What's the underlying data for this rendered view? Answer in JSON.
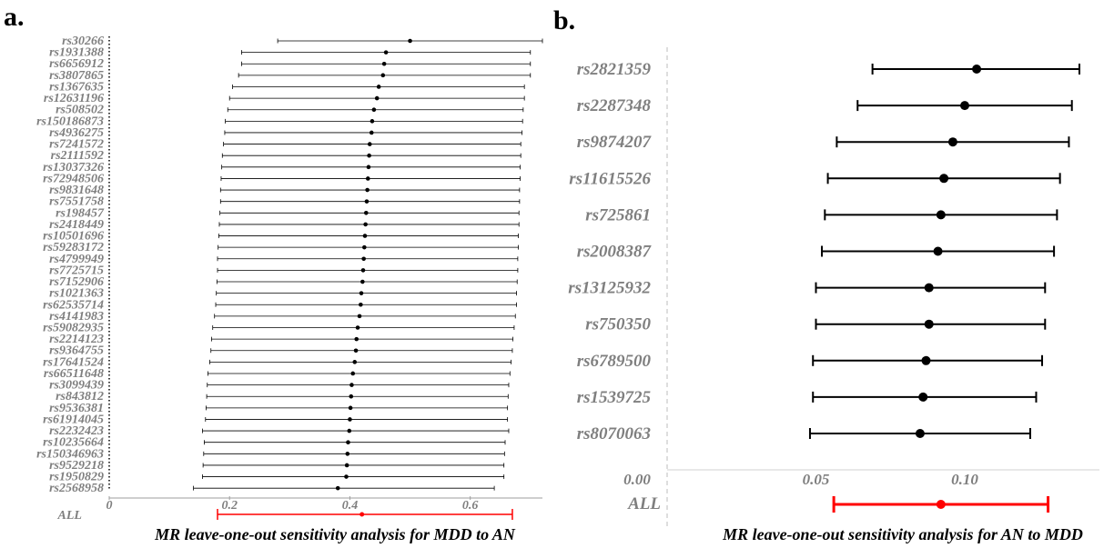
{
  "chart_data": [
    {
      "type": "forest",
      "panel_label": "a.",
      "title": "MR leave-one-out sensitivity analysis for MDD to AN",
      "xlim": [
        0,
        0.72
      ],
      "x_ticks": [
        "0",
        "0.2",
        "0.4",
        "0.6"
      ],
      "x_tick_values": [
        0,
        0.2,
        0.4,
        0.6
      ],
      "series": [
        {
          "snp": "rs30266",
          "estimate": 0.5,
          "lower": 0.28,
          "upper": 0.72
        },
        {
          "snp": "rs1931388",
          "estimate": 0.46,
          "lower": 0.22,
          "upper": 0.7
        },
        {
          "snp": "rs6656912",
          "estimate": 0.457,
          "lower": 0.22,
          "upper": 0.7
        },
        {
          "snp": "rs3807865",
          "estimate": 0.455,
          "lower": 0.215,
          "upper": 0.7
        },
        {
          "snp": "rs1367635",
          "estimate": 0.448,
          "lower": 0.205,
          "upper": 0.69
        },
        {
          "snp": "rs12631196",
          "estimate": 0.445,
          "lower": 0.2,
          "upper": 0.69
        },
        {
          "snp": "rs508502",
          "estimate": 0.44,
          "lower": 0.197,
          "upper": 0.688
        },
        {
          "snp": "rs150186873",
          "estimate": 0.437,
          "lower": 0.193,
          "upper": 0.687
        },
        {
          "snp": "rs4936275",
          "estimate": 0.436,
          "lower": 0.192,
          "upper": 0.686
        },
        {
          "snp": "rs7241572",
          "estimate": 0.433,
          "lower": 0.19,
          "upper": 0.684
        },
        {
          "snp": "rs2111592",
          "estimate": 0.432,
          "lower": 0.188,
          "upper": 0.684
        },
        {
          "snp": "rs13037326",
          "estimate": 0.431,
          "lower": 0.187,
          "upper": 0.683
        },
        {
          "snp": "rs72948506",
          "estimate": 0.43,
          "lower": 0.186,
          "upper": 0.683
        },
        {
          "snp": "rs9831648",
          "estimate": 0.429,
          "lower": 0.185,
          "upper": 0.682
        },
        {
          "snp": "rs7551758",
          "estimate": 0.428,
          "lower": 0.185,
          "upper": 0.682
        },
        {
          "snp": "rs198457",
          "estimate": 0.427,
          "lower": 0.184,
          "upper": 0.681
        },
        {
          "snp": "rs2418449",
          "estimate": 0.426,
          "lower": 0.183,
          "upper": 0.681
        },
        {
          "snp": "rs10501696",
          "estimate": 0.425,
          "lower": 0.182,
          "upper": 0.68
        },
        {
          "snp": "rs59283172",
          "estimate": 0.424,
          "lower": 0.181,
          "upper": 0.68
        },
        {
          "snp": "rs4799949",
          "estimate": 0.423,
          "lower": 0.18,
          "upper": 0.679
        },
        {
          "snp": "rs7725715",
          "estimate": 0.422,
          "lower": 0.18,
          "upper": 0.679
        },
        {
          "snp": "rs7152906",
          "estimate": 0.421,
          "lower": 0.179,
          "upper": 0.678
        },
        {
          "snp": "rs1021363",
          "estimate": 0.419,
          "lower": 0.178,
          "upper": 0.677
        },
        {
          "snp": "rs62535714",
          "estimate": 0.418,
          "lower": 0.177,
          "upper": 0.677
        },
        {
          "snp": "rs4141983",
          "estimate": 0.416,
          "lower": 0.175,
          "upper": 0.675
        },
        {
          "snp": "rs59082935",
          "estimate": 0.413,
          "lower": 0.172,
          "upper": 0.673
        },
        {
          "snp": "rs2214123",
          "estimate": 0.411,
          "lower": 0.17,
          "upper": 0.671
        },
        {
          "snp": "rs9364755",
          "estimate": 0.41,
          "lower": 0.169,
          "upper": 0.67
        },
        {
          "snp": "rs17641524",
          "estimate": 0.408,
          "lower": 0.167,
          "upper": 0.668
        },
        {
          "snp": "rs66511648",
          "estimate": 0.405,
          "lower": 0.164,
          "upper": 0.666
        },
        {
          "snp": "rs3099439",
          "estimate": 0.403,
          "lower": 0.163,
          "upper": 0.664
        },
        {
          "snp": "rs843812",
          "estimate": 0.402,
          "lower": 0.162,
          "upper": 0.663
        },
        {
          "snp": "rs9536381",
          "estimate": 0.401,
          "lower": 0.161,
          "upper": 0.662
        },
        {
          "snp": "rs61914045",
          "estimate": 0.4,
          "lower": 0.16,
          "upper": 0.662
        },
        {
          "snp": "rs2232423",
          "estimate": 0.399,
          "lower": 0.155,
          "upper": 0.664
        },
        {
          "snp": "rs10235664",
          "estimate": 0.397,
          "lower": 0.158,
          "upper": 0.658
        },
        {
          "snp": "rs150346963",
          "estimate": 0.396,
          "lower": 0.157,
          "upper": 0.657
        },
        {
          "snp": "rs9529218",
          "estimate": 0.395,
          "lower": 0.156,
          "upper": 0.656
        },
        {
          "snp": "rs1950829",
          "estimate": 0.394,
          "lower": 0.155,
          "upper": 0.656
        },
        {
          "snp": "rs2568958",
          "estimate": 0.38,
          "lower": 0.14,
          "upper": 0.64
        }
      ],
      "overall": {
        "label": "ALL",
        "estimate": 0.42,
        "lower": 0.18,
        "upper": 0.67,
        "color": "#ff0000"
      },
      "point_color": "#000000",
      "axis_color": "#9e9e9e"
    },
    {
      "type": "forest",
      "panel_label": "b.",
      "title": "MR leave-one-out sensitivity analysis for AN to MDD",
      "xlim": [
        0,
        0.135
      ],
      "x_ticks": [
        "0.00",
        "0.05",
        "0.10"
      ],
      "x_tick_values": [
        0,
        0.05,
        0.1
      ],
      "series": [
        {
          "snp": "rs2821359",
          "estimate": 0.104,
          "lower": 0.069,
          "upper": 0.139
        },
        {
          "snp": "rs2287348",
          "estimate": 0.1,
          "lower": 0.064,
          "upper": 0.136
        },
        {
          "snp": "rs9874207",
          "estimate": 0.096,
          "lower": 0.057,
          "upper": 0.135
        },
        {
          "snp": "rs11615526",
          "estimate": 0.093,
          "lower": 0.054,
          "upper": 0.132
        },
        {
          "snp": "rs725861",
          "estimate": 0.092,
          "lower": 0.053,
          "upper": 0.131
        },
        {
          "snp": "rs2008387",
          "estimate": 0.091,
          "lower": 0.052,
          "upper": 0.13
        },
        {
          "snp": "rs13125932",
          "estimate": 0.088,
          "lower": 0.05,
          "upper": 0.127
        },
        {
          "snp": "rs750350",
          "estimate": 0.088,
          "lower": 0.05,
          "upper": 0.127
        },
        {
          "snp": "rs6789500",
          "estimate": 0.087,
          "lower": 0.049,
          "upper": 0.126
        },
        {
          "snp": "rs1539725",
          "estimate": 0.086,
          "lower": 0.049,
          "upper": 0.124
        },
        {
          "snp": "rs8070063",
          "estimate": 0.085,
          "lower": 0.048,
          "upper": 0.122
        }
      ],
      "overall": {
        "label": "ALL",
        "estimate": 0.092,
        "lower": 0.056,
        "upper": 0.128,
        "color": "#ff0000"
      },
      "point_color": "#000000",
      "axis_color": "#9e9e9e"
    }
  ]
}
